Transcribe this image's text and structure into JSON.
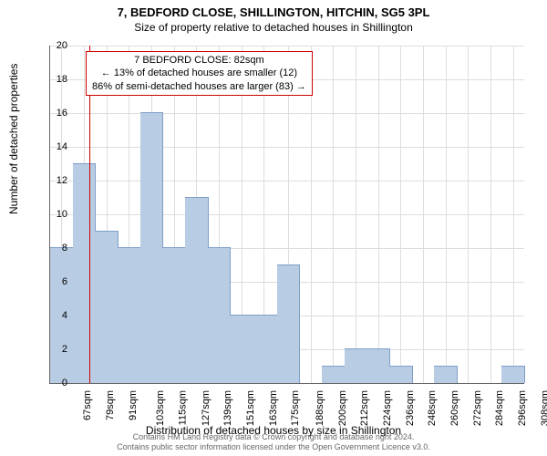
{
  "title": "7, BEDFORD CLOSE, SHILLINGTON, HITCHIN, SG5 3PL",
  "subtitle": "Size of property relative to detached houses in Shillington",
  "ylabel": "Number of detached properties",
  "xlabel": "Distribution of detached houses by size in Shillington",
  "footer1": "Contains HM Land Registry data © Crown copyright and database right 2024.",
  "footer2": "Contains public sector information licensed under the Open Government Licence v3.0.",
  "callout": {
    "line1": "7 BEDFORD CLOSE: 82sqm",
    "line2": "← 13% of detached houses are smaller (12)",
    "line3": "86% of semi-detached houses are larger (83) →"
  },
  "chart": {
    "type": "histogram",
    "ylim": [
      0,
      20
    ],
    "ytick_step": 2,
    "xlim": [
      61,
      314
    ],
    "xticks": [
      67,
      79,
      91,
      103,
      115,
      127,
      139,
      151,
      163,
      175,
      188,
      200,
      212,
      224,
      236,
      248,
      260,
      272,
      284,
      296,
      308
    ],
    "xtick_suffix": "sqm",
    "reference_x": 82,
    "reference_color": "#cc0000",
    "bar_color": "#b8cce4",
    "bar_border": "#7f9fc7",
    "grid_color": "#dddddd",
    "background_color": "#ffffff",
    "bars": [
      {
        "x0": 61,
        "x1": 73,
        "y": 8
      },
      {
        "x0": 73,
        "x1": 85,
        "y": 13
      },
      {
        "x0": 85,
        "x1": 97,
        "y": 9
      },
      {
        "x0": 97,
        "x1": 109,
        "y": 8
      },
      {
        "x0": 109,
        "x1": 121,
        "y": 16
      },
      {
        "x0": 121,
        "x1": 133,
        "y": 8
      },
      {
        "x0": 133,
        "x1": 145,
        "y": 11
      },
      {
        "x0": 145,
        "x1": 157,
        "y": 8
      },
      {
        "x0": 157,
        "x1": 169,
        "y": 4
      },
      {
        "x0": 169,
        "x1": 182,
        "y": 4
      },
      {
        "x0": 182,
        "x1": 194,
        "y": 7
      },
      {
        "x0": 194,
        "x1": 206,
        "y": 0
      },
      {
        "x0": 206,
        "x1": 218,
        "y": 1
      },
      {
        "x0": 218,
        "x1": 230,
        "y": 2
      },
      {
        "x0": 230,
        "x1": 242,
        "y": 2
      },
      {
        "x0": 242,
        "x1": 254,
        "y": 1
      },
      {
        "x0": 254,
        "x1": 266,
        "y": 0
      },
      {
        "x0": 266,
        "x1": 278,
        "y": 1
      },
      {
        "x0": 278,
        "x1": 290,
        "y": 0
      },
      {
        "x0": 290,
        "x1": 302,
        "y": 0
      },
      {
        "x0": 302,
        "x1": 314,
        "y": 1
      }
    ]
  }
}
